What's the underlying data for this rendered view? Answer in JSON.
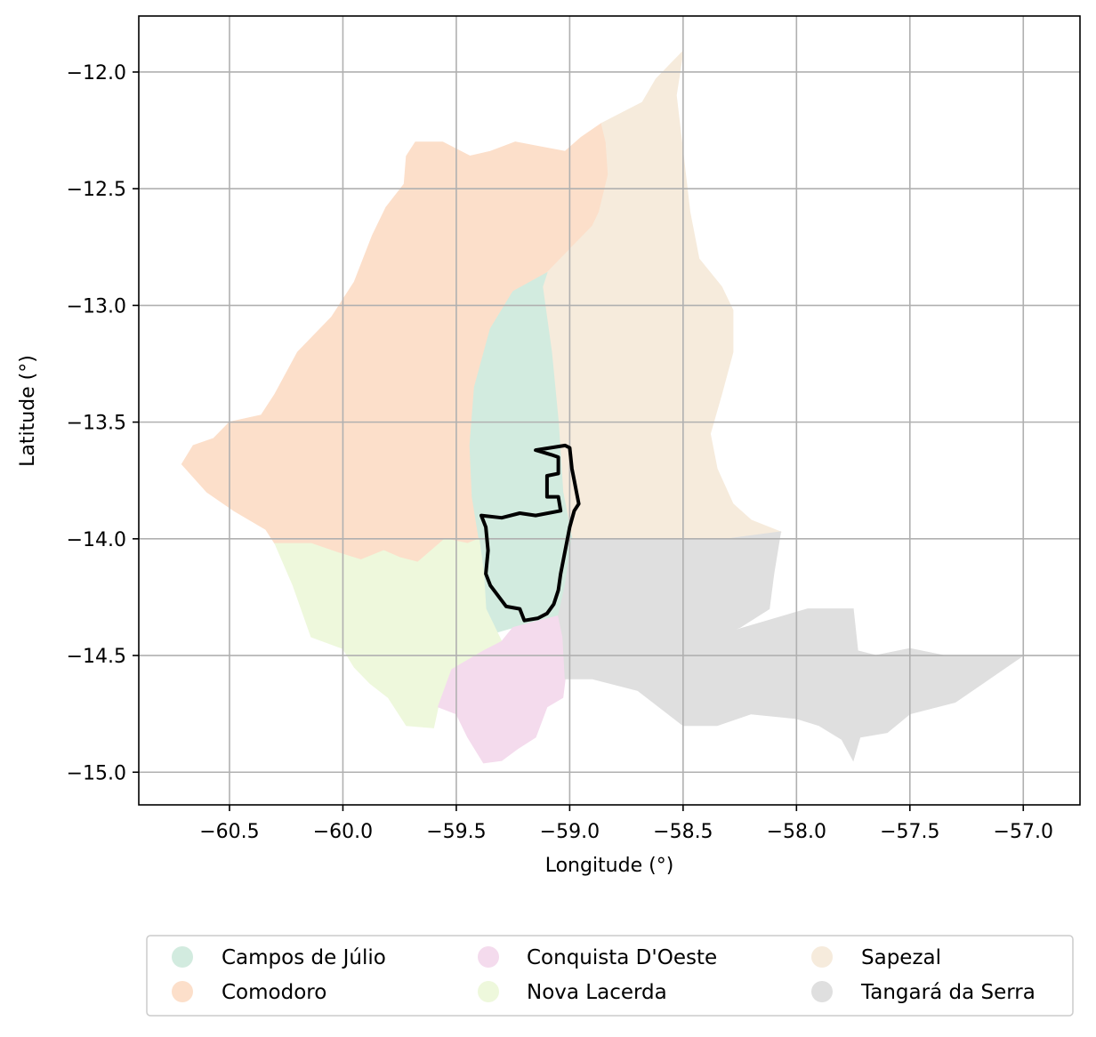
{
  "map": {
    "xlabel": "Longitude (°)",
    "ylabel": "Latitude (°)",
    "xlim": [
      -60.9,
      -56.75
    ],
    "ylim": [
      -15.14,
      -11.76
    ],
    "x_ticks": [
      -60.5,
      -60.0,
      -59.5,
      -59.0,
      -58.5,
      -58.0,
      -57.5,
      -57.0
    ],
    "x_tick_labels": [
      "−60.5",
      "−60.0",
      "−59.5",
      "−59.0",
      "−58.5",
      "−58.0",
      "−57.5",
      "−57.0"
    ],
    "y_ticks": [
      -12.0,
      -12.5,
      -13.0,
      -13.5,
      -14.0,
      -14.5,
      -15.0
    ],
    "y_tick_labels": [
      "−12.0",
      "−12.5",
      "−13.0",
      "−13.5",
      "−14.0",
      "−14.5",
      "−15.0"
    ],
    "grid": true,
    "legend_position": "bottom-center",
    "legend_columns": 3,
    "outline_color": "#000000"
  },
  "legend": {
    "items": [
      {
        "label": "Campos de Júlio",
        "color": "#d2ebdf"
      },
      {
        "label": "Comodoro",
        "color": "#fcdfca"
      },
      {
        "label": "Conquista D'Oeste",
        "color": "#f4dbed"
      },
      {
        "label": "Nova Lacerda",
        "color": "#eef8dc"
      },
      {
        "label": "Sapezal",
        "color": "#f6ebdc"
      },
      {
        "label": "Tangará da Serra",
        "color": "#dfdfdf"
      }
    ]
  },
  "regions": [
    {
      "name": "Comodoro",
      "color": "#fcdfca",
      "coords": [
        [
          -60.71,
          -13.68
        ],
        [
          -60.66,
          -13.6
        ],
        [
          -60.57,
          -13.57
        ],
        [
          -60.5,
          -13.5
        ],
        [
          -60.36,
          -13.47
        ],
        [
          -60.3,
          -13.38
        ],
        [
          -60.2,
          -13.2
        ],
        [
          -60.05,
          -13.05
        ],
        [
          -59.95,
          -12.9
        ],
        [
          -59.87,
          -12.7
        ],
        [
          -59.81,
          -12.58
        ],
        [
          -59.73,
          -12.48
        ],
        [
          -59.72,
          -12.36
        ],
        [
          -59.68,
          -12.3
        ],
        [
          -59.56,
          -12.3
        ],
        [
          -59.44,
          -12.36
        ],
        [
          -59.35,
          -12.34
        ],
        [
          -59.24,
          -12.3
        ],
        [
          -59.13,
          -12.32
        ],
        [
          -59.02,
          -12.34
        ],
        [
          -58.95,
          -12.28
        ],
        [
          -58.86,
          -12.22
        ],
        [
          -58.84,
          -12.3
        ],
        [
          -58.83,
          -12.44
        ],
        [
          -58.87,
          -12.6
        ],
        [
          -58.9,
          -12.66
        ],
        [
          -59.0,
          -12.76
        ],
        [
          -59.1,
          -12.86
        ],
        [
          -59.25,
          -12.94
        ],
        [
          -59.35,
          -13.1
        ],
        [
          -59.42,
          -13.35
        ],
        [
          -59.44,
          -13.6
        ],
        [
          -59.43,
          -13.82
        ],
        [
          -59.4,
          -14.0
        ],
        [
          -59.45,
          -14.02
        ],
        [
          -59.55,
          -14.0
        ],
        [
          -59.67,
          -14.1
        ],
        [
          -59.75,
          -14.08
        ],
        [
          -59.82,
          -14.05
        ],
        [
          -59.92,
          -14.09
        ],
        [
          -60.02,
          -14.06
        ],
        [
          -60.14,
          -14.02
        ],
        [
          -60.3,
          -14.02
        ],
        [
          -60.34,
          -13.96
        ],
        [
          -60.48,
          -13.88
        ],
        [
          -60.6,
          -13.8
        ]
      ]
    },
    {
      "name": "Sapezal",
      "color": "#f6ebdc",
      "coords": [
        [
          -58.86,
          -12.22
        ],
        [
          -58.78,
          -12.18
        ],
        [
          -58.68,
          -12.13
        ],
        [
          -58.62,
          -12.03
        ],
        [
          -58.55,
          -11.96
        ],
        [
          -58.5,
          -11.91
        ],
        [
          -58.53,
          -12.1
        ],
        [
          -58.5,
          -12.35
        ],
        [
          -58.47,
          -12.6
        ],
        [
          -58.43,
          -12.8
        ],
        [
          -58.33,
          -12.92
        ],
        [
          -58.28,
          -13.02
        ],
        [
          -58.28,
          -13.2
        ],
        [
          -58.33,
          -13.38
        ],
        [
          -58.38,
          -13.55
        ],
        [
          -58.35,
          -13.7
        ],
        [
          -58.28,
          -13.85
        ],
        [
          -58.2,
          -13.92
        ],
        [
          -58.07,
          -13.97
        ],
        [
          -58.3,
          -14.0
        ],
        [
          -58.6,
          -14.0
        ],
        [
          -58.99,
          -14.0
        ],
        [
          -59.03,
          -13.8
        ],
        [
          -59.05,
          -13.5
        ],
        [
          -59.08,
          -13.2
        ],
        [
          -59.12,
          -12.92
        ],
        [
          -59.1,
          -12.86
        ],
        [
          -59.0,
          -12.76
        ],
        [
          -58.9,
          -12.66
        ],
        [
          -58.87,
          -12.6
        ],
        [
          -58.83,
          -12.44
        ],
        [
          -58.84,
          -12.3
        ]
      ]
    },
    {
      "name": "Campos de Júlio",
      "color": "#d2ebdf",
      "coords": [
        [
          -59.1,
          -12.86
        ],
        [
          -59.25,
          -12.94
        ],
        [
          -59.35,
          -13.1
        ],
        [
          -59.42,
          -13.35
        ],
        [
          -59.44,
          -13.6
        ],
        [
          -59.43,
          -13.82
        ],
        [
          -59.4,
          -14.0
        ],
        [
          -59.38,
          -14.14
        ],
        [
          -59.37,
          -14.3
        ],
        [
          -59.32,
          -14.4
        ],
        [
          -59.25,
          -14.38
        ],
        [
          -59.05,
          -14.33
        ],
        [
          -59.02,
          -14.2
        ],
        [
          -58.99,
          -14.0
        ],
        [
          -59.03,
          -13.8
        ],
        [
          -59.05,
          -13.5
        ],
        [
          -59.08,
          -13.2
        ],
        [
          -59.12,
          -12.92
        ]
      ]
    },
    {
      "name": "Nova Lacerda",
      "color": "#eef8dc",
      "coords": [
        [
          -60.3,
          -14.02
        ],
        [
          -60.22,
          -14.2
        ],
        [
          -60.14,
          -14.42
        ],
        [
          -60.0,
          -14.47
        ],
        [
          -59.95,
          -14.55
        ],
        [
          -59.88,
          -14.62
        ],
        [
          -59.8,
          -14.68
        ],
        [
          -59.72,
          -14.8
        ],
        [
          -59.6,
          -14.81
        ],
        [
          -59.58,
          -14.72
        ],
        [
          -59.52,
          -14.56
        ],
        [
          -59.38,
          -14.48
        ],
        [
          -59.3,
          -14.44
        ],
        [
          -59.32,
          -14.4
        ],
        [
          -59.37,
          -14.3
        ],
        [
          -59.38,
          -14.14
        ],
        [
          -59.4,
          -14.0
        ],
        [
          -59.45,
          -14.02
        ],
        [
          -59.55,
          -14.0
        ],
        [
          -59.67,
          -14.1
        ],
        [
          -59.75,
          -14.08
        ],
        [
          -59.82,
          -14.05
        ],
        [
          -59.92,
          -14.09
        ],
        [
          -60.02,
          -14.06
        ],
        [
          -60.14,
          -14.02
        ]
      ]
    },
    {
      "name": "Conquista D'Oeste",
      "color": "#f4dbed",
      "coords": [
        [
          -59.52,
          -14.56
        ],
        [
          -59.38,
          -14.48
        ],
        [
          -59.3,
          -14.44
        ],
        [
          -59.25,
          -14.38
        ],
        [
          -59.05,
          -14.33
        ],
        [
          -59.03,
          -14.42
        ],
        [
          -59.02,
          -14.6
        ],
        [
          -59.03,
          -14.68
        ],
        [
          -59.1,
          -14.72
        ],
        [
          -59.15,
          -14.85
        ],
        [
          -59.23,
          -14.9
        ],
        [
          -59.3,
          -14.95
        ],
        [
          -59.38,
          -14.96
        ],
        [
          -59.45,
          -14.85
        ],
        [
          -59.5,
          -14.75
        ],
        [
          -59.58,
          -14.72
        ]
      ]
    },
    {
      "name": "Tangará da Serra",
      "color": "#dfdfdf",
      "coords": [
        [
          -58.99,
          -14.0
        ],
        [
          -58.6,
          -14.0
        ],
        [
          -58.3,
          -14.0
        ],
        [
          -58.07,
          -13.97
        ],
        [
          -58.1,
          -14.15
        ],
        [
          -58.12,
          -14.3
        ],
        [
          -58.25,
          -14.38
        ],
        [
          -58.3,
          -14.4
        ],
        [
          -57.95,
          -14.3
        ],
        [
          -57.75,
          -14.3
        ],
        [
          -57.73,
          -14.48
        ],
        [
          -57.65,
          -14.5
        ],
        [
          -57.5,
          -14.47
        ],
        [
          -57.35,
          -14.5
        ],
        [
          -57.2,
          -14.5
        ],
        [
          -57.0,
          -14.5
        ],
        [
          -57.15,
          -14.6
        ],
        [
          -57.3,
          -14.7
        ],
        [
          -57.5,
          -14.75
        ],
        [
          -57.6,
          -14.83
        ],
        [
          -57.72,
          -14.85
        ],
        [
          -57.75,
          -14.95
        ],
        [
          -57.8,
          -14.86
        ],
        [
          -57.9,
          -14.8
        ],
        [
          -58.0,
          -14.77
        ],
        [
          -58.2,
          -14.75
        ],
        [
          -58.35,
          -14.8
        ],
        [
          -58.5,
          -14.8
        ],
        [
          -58.7,
          -14.65
        ],
        [
          -58.9,
          -14.6
        ],
        [
          -59.02,
          -14.6
        ],
        [
          -59.03,
          -14.42
        ],
        [
          -59.05,
          -14.33
        ],
        [
          -59.02,
          -14.2
        ]
      ]
    }
  ],
  "boundary": {
    "name": "Highlighted area",
    "coords": [
      [
        -59.15,
        -13.62
      ],
      [
        -59.02,
        -13.6
      ],
      [
        -59.0,
        -13.61
      ],
      [
        -58.99,
        -13.7
      ],
      [
        -58.98,
        -13.75
      ],
      [
        -58.97,
        -13.8
      ],
      [
        -58.96,
        -13.85
      ],
      [
        -58.98,
        -13.88
      ],
      [
        -59.0,
        -13.95
      ],
      [
        -59.02,
        -14.05
      ],
      [
        -59.04,
        -14.15
      ],
      [
        -59.05,
        -14.22
      ],
      [
        -59.07,
        -14.28
      ],
      [
        -59.1,
        -14.32
      ],
      [
        -59.14,
        -14.34
      ],
      [
        -59.2,
        -14.35
      ],
      [
        -59.22,
        -14.3
      ],
      [
        -59.28,
        -14.29
      ],
      [
        -59.35,
        -14.2
      ],
      [
        -59.37,
        -14.15
      ],
      [
        -59.36,
        -14.05
      ],
      [
        -59.37,
        -13.95
      ],
      [
        -59.39,
        -13.9
      ],
      [
        -59.3,
        -13.91
      ],
      [
        -59.22,
        -13.89
      ],
      [
        -59.15,
        -13.9
      ],
      [
        -59.04,
        -13.88
      ],
      [
        -59.05,
        -13.82
      ],
      [
        -59.1,
        -13.82
      ],
      [
        -59.1,
        -13.73
      ],
      [
        -59.05,
        -13.72
      ],
      [
        -59.05,
        -13.65
      ],
      [
        -59.08,
        -13.64
      ]
    ]
  }
}
